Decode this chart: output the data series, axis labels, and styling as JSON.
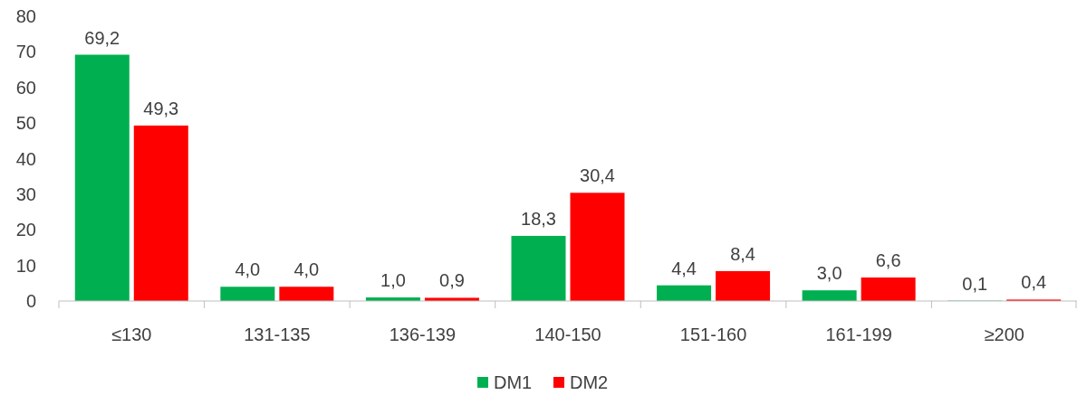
{
  "chart_data": {
    "type": "bar",
    "categories": [
      "≤130",
      "131-135",
      "136-139",
      "140-150",
      "151-160",
      "161-199",
      "≥200"
    ],
    "series": [
      {
        "name": "DM1",
        "color": "#00b050",
        "values": [
          69.2,
          4.0,
          1.0,
          18.3,
          4.4,
          3.0,
          0.1
        ],
        "value_labels": [
          "69,2",
          "4,0",
          "1,0",
          "18,3",
          "4,4",
          "3,0",
          "0,1"
        ]
      },
      {
        "name": "DM2",
        "color": "#ff0000",
        "values": [
          49.3,
          4.0,
          0.9,
          30.4,
          8.4,
          6.6,
          0.4
        ],
        "value_labels": [
          "49,3",
          "4,0",
          "0,9",
          "30,4",
          "8,4",
          "6,6",
          "0,4"
        ]
      }
    ],
    "ylim": [
      0,
      80
    ],
    "yticks": [
      0,
      10,
      20,
      30,
      40,
      50,
      60,
      70,
      80
    ],
    "grid": false,
    "legend": "bottom"
  }
}
